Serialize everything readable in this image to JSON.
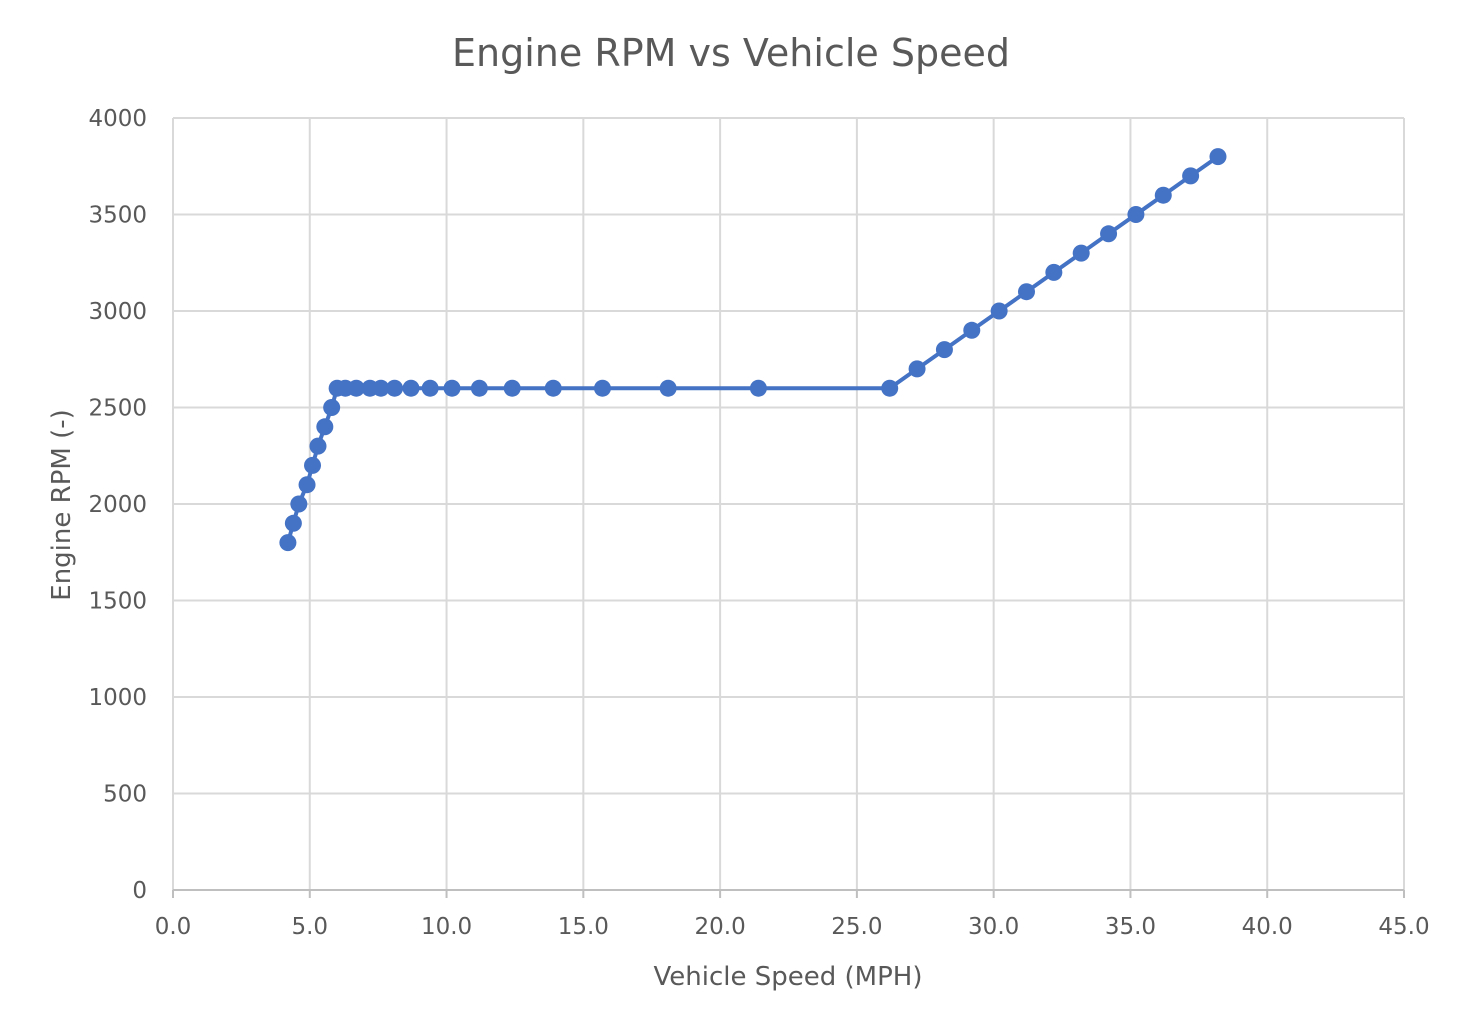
{
  "chart_data": {
    "type": "line",
    "title": "Engine RPM vs Vehicle Speed",
    "xlabel": "Vehicle Speed (MPH)",
    "ylabel": "Engine RPM (-)",
    "xlim": [
      0,
      45
    ],
    "ylim": [
      0,
      4000
    ],
    "x_ticks": [
      "0.0",
      "5.0",
      "10.0",
      "15.0",
      "20.0",
      "25.0",
      "30.0",
      "35.0",
      "40.0",
      "45.0"
    ],
    "y_ticks": [
      "0",
      "500",
      "1000",
      "1500",
      "2000",
      "2500",
      "3000",
      "3500",
      "4000"
    ],
    "x_tick_values": [
      0,
      5,
      10,
      15,
      20,
      25,
      30,
      35,
      40,
      45
    ],
    "y_tick_values": [
      0,
      500,
      1000,
      1500,
      2000,
      2500,
      3000,
      3500,
      4000
    ],
    "grid": true,
    "legend": "none",
    "series": [
      {
        "color": "#4472C4",
        "marker": "circle",
        "points": [
          [
            4.2,
            1800
          ],
          [
            4.4,
            1900
          ],
          [
            4.6,
            2000
          ],
          [
            4.9,
            2100
          ],
          [
            5.1,
            2200
          ],
          [
            5.3,
            2300
          ],
          [
            5.55,
            2400
          ],
          [
            5.8,
            2500
          ],
          [
            6.0,
            2600
          ],
          [
            6.3,
            2600
          ],
          [
            6.7,
            2600
          ],
          [
            7.2,
            2600
          ],
          [
            7.6,
            2600
          ],
          [
            8.1,
            2600
          ],
          [
            8.7,
            2600
          ],
          [
            9.4,
            2600
          ],
          [
            10.2,
            2600
          ],
          [
            11.2,
            2600
          ],
          [
            12.4,
            2600
          ],
          [
            13.9,
            2600
          ],
          [
            15.7,
            2600
          ],
          [
            18.1,
            2600
          ],
          [
            21.4,
            2600
          ],
          [
            26.2,
            2600
          ],
          [
            27.2,
            2700
          ],
          [
            28.2,
            2800
          ],
          [
            29.2,
            2900
          ],
          [
            30.2,
            3000
          ],
          [
            31.2,
            3100
          ],
          [
            32.2,
            3200
          ],
          [
            33.2,
            3300
          ],
          [
            34.2,
            3400
          ],
          [
            35.2,
            3500
          ],
          [
            36.2,
            3600
          ],
          [
            37.2,
            3700
          ],
          [
            38.2,
            3800
          ]
        ]
      }
    ]
  }
}
